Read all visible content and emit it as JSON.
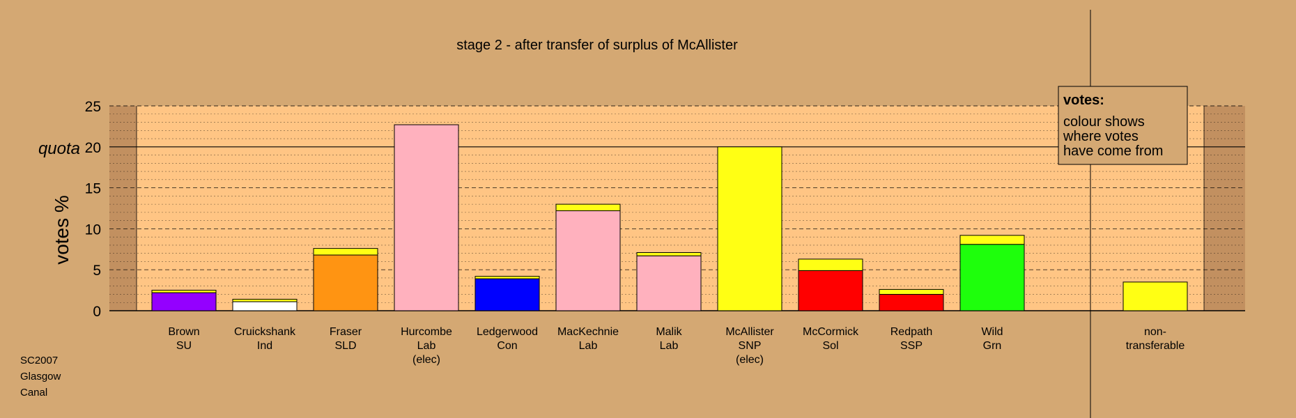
{
  "chart_data": {
    "type": "bar",
    "title": "stage 2 - after transfer of surplus of McAllister",
    "ylabel": "votes %",
    "ylim": [
      0,
      25
    ],
    "yticks": [
      0,
      5,
      10,
      15,
      20,
      25
    ],
    "quota": 20,
    "quota_label": "quota",
    "grid": true,
    "candidates": [
      {
        "name": "Brown",
        "party": "SU",
        "note": "",
        "own": 2.2,
        "transfer": 0.3,
        "color": "#9400ff"
      },
      {
        "name": "Cruickshank",
        "party": "Ind",
        "note": "",
        "own": 1.1,
        "transfer": 0.3,
        "color": "#ffffff"
      },
      {
        "name": "Fraser",
        "party": "SLD",
        "note": "",
        "own": 6.8,
        "transfer": 0.8,
        "color": "#ff9412"
      },
      {
        "name": "Hurcombe",
        "party": "Lab",
        "note": "(elec)",
        "own": 22.7,
        "transfer": 0,
        "color": "#ffb1be"
      },
      {
        "name": "Ledgerwood",
        "party": "Con",
        "note": "",
        "own": 3.9,
        "transfer": 0.3,
        "color": "#0000ff"
      },
      {
        "name": "MacKechnie",
        "party": "Lab",
        "note": "",
        "own": 12.2,
        "transfer": 0.8,
        "color": "#ffb1be"
      },
      {
        "name": "Malik",
        "party": "Lab",
        "note": "",
        "own": 6.7,
        "transfer": 0.4,
        "color": "#ffb1be"
      },
      {
        "name": "McAllister",
        "party": "SNP",
        "note": "(elec)",
        "own": 20.0,
        "transfer": 0,
        "color": "#ffff14"
      },
      {
        "name": "McCormick",
        "party": "Sol",
        "note": "",
        "own": 4.9,
        "transfer": 1.4,
        "color": "#ff0000"
      },
      {
        "name": "Redpath",
        "party": "SSP",
        "note": "",
        "own": 2.0,
        "transfer": 0.6,
        "color": "#ff0000"
      },
      {
        "name": "Wild",
        "party": "Grn",
        "note": "",
        "own": 8.1,
        "transfer": 1.1,
        "color": "#1eff0c"
      }
    ],
    "non_transferable": {
      "label_1": "non-",
      "label_2": "transferable",
      "value": 3.5,
      "color": "#ffff14"
    },
    "transfer_color": "#ffff14",
    "legend": {
      "title": "votes:",
      "lines": [
        "colour shows",
        "where votes",
        "have come from"
      ]
    }
  },
  "source_lines": [
    "SC2007",
    "Glasgow",
    "Canal"
  ]
}
